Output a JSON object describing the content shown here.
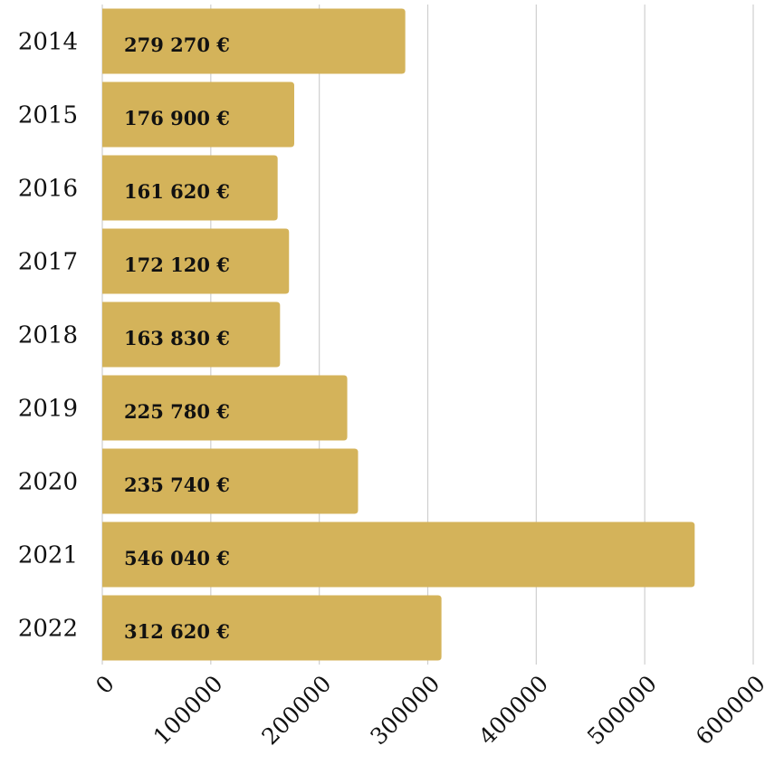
{
  "chart_data": {
    "type": "barh",
    "categories": [
      "2014",
      "2015",
      "2016",
      "2017",
      "2018",
      "2019",
      "2020",
      "2021",
      "2022"
    ],
    "values": [
      279270,
      176900,
      161620,
      172120,
      163830,
      225780,
      235740,
      546040,
      312620
    ],
    "value_labels": [
      "279 270 €",
      "176 900 €",
      "161 620 €",
      "172 120 €",
      "163 830 €",
      "225 780 €",
      "235 740 €",
      "546 040 €",
      "312 620 €"
    ],
    "color": "#d4b35a",
    "xlim": [
      0,
      600000
    ],
    "xticks": [
      0,
      100000,
      200000,
      300000,
      400000,
      500000,
      600000
    ],
    "grid": true
  }
}
